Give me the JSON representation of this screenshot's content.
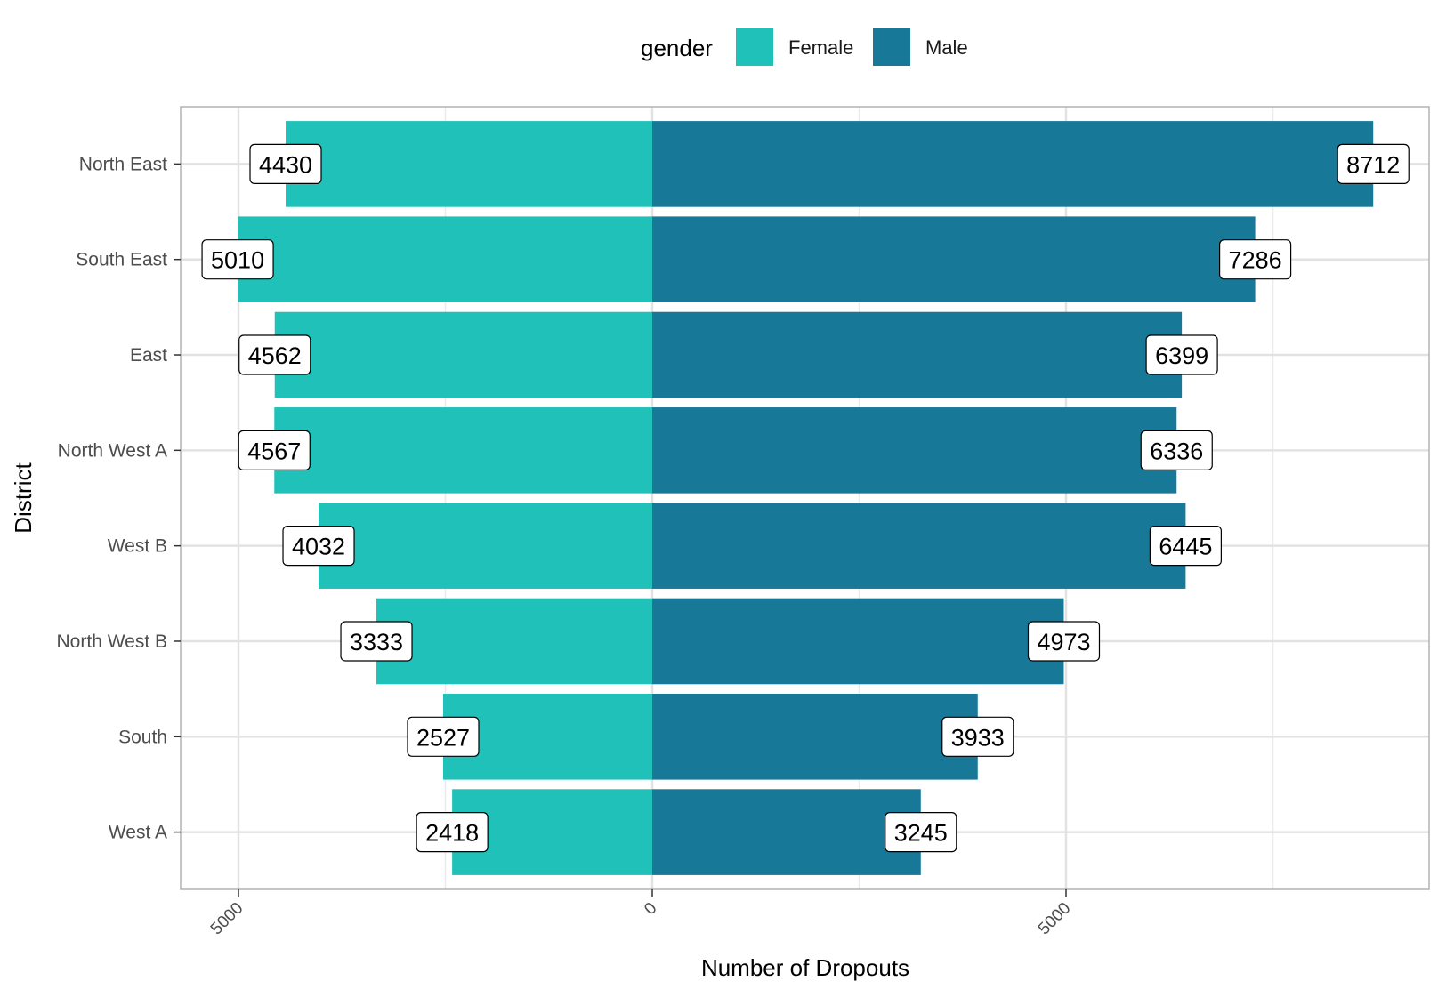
{
  "chart_data": {
    "type": "bar",
    "orientation": "horizontal",
    "layout": "diverging",
    "categories": [
      "North East",
      "South East",
      "East",
      "North West A",
      "West B",
      "North West B",
      "South",
      "West A"
    ],
    "series": [
      {
        "name": "Female",
        "direction": "left",
        "color": "#1fc1b8",
        "values": [
          4430,
          5010,
          4562,
          4567,
          4032,
          3333,
          2527,
          2418
        ]
      },
      {
        "name": "Male",
        "direction": "right",
        "color": "#187898",
        "values": [
          8712,
          7286,
          6399,
          6336,
          6445,
          4973,
          3933,
          3245
        ]
      }
    ],
    "xlabel": "Number of Dropouts",
    "ylabel": "District",
    "xlim": [
      -5500,
      9400
    ],
    "x_ticks": [
      -5000,
      0,
      5000
    ],
    "x_tick_labels": [
      "5000",
      "0",
      "5000"
    ],
    "legend": {
      "title": "gender",
      "position": "top"
    },
    "grid": true,
    "data_labels": true
  }
}
